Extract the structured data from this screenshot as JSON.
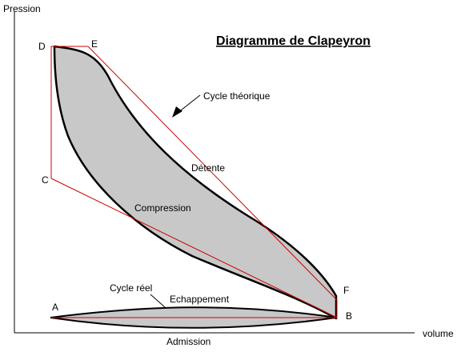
{
  "title": "Diagramme de Clapeyron",
  "axes": {
    "y_label": "Pression",
    "x_label": "volume"
  },
  "points": {
    "A": "A",
    "B": "B",
    "C": "C",
    "D": "D",
    "E": "E",
    "F": "F"
  },
  "labels": {
    "theoretical_cycle": "Cycle théorique",
    "real_cycle": "Cycle réel",
    "expansion": "Détente",
    "compression": "Compression",
    "exhaust": "Echappement",
    "intake": "Admission"
  },
  "colors": {
    "theoretical_cycle": "#cc0000",
    "real_cycle_fill": "#c8c8c8",
    "real_cycle_stroke": "#000000",
    "axes": "#000000"
  }
}
